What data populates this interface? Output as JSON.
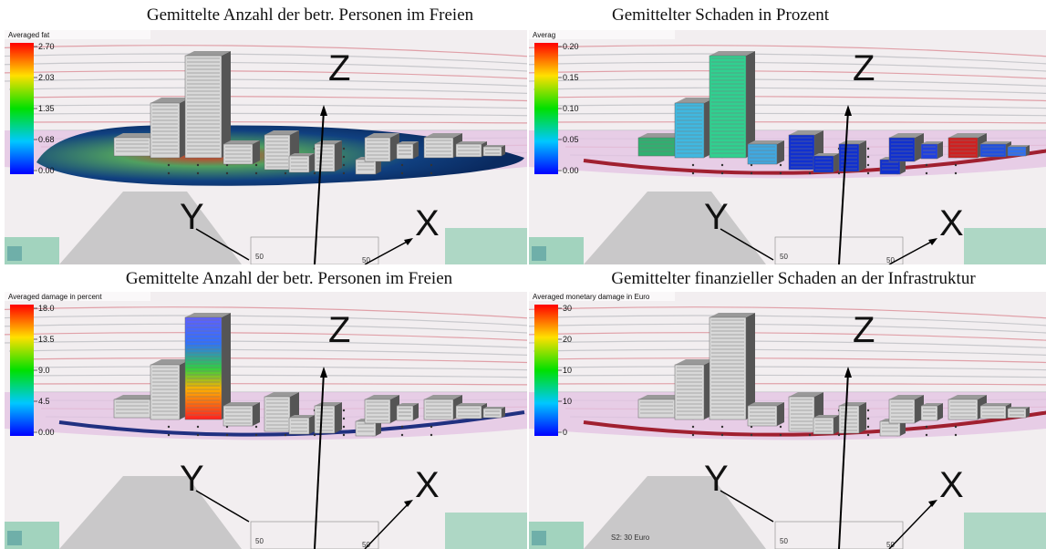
{
  "panels": [
    {
      "title": "Gemittelte Anzahl der betr. Personen im Freien",
      "legend_title": "Averaged fat",
      "legend_ticks": [
        "2.70",
        "2.03",
        "1.35",
        "0.68",
        "0.00"
      ],
      "axis_labels": {
        "z": "Z",
        "y": "Y",
        "x": "X"
      },
      "grid_labels": [
        "50",
        "50"
      ]
    },
    {
      "title": "Gemittelter Schaden in Prozent",
      "legend_title": "Averag",
      "legend_ticks": [
        "0.20",
        "0.15",
        "0.10",
        "0.05",
        "0.00"
      ],
      "axis_labels": {
        "z": "Z",
        "y": "Y",
        "x": "X"
      },
      "grid_labels": [
        "50",
        "50"
      ]
    },
    {
      "title": "Gemittelte Anzahl der betr. Personen im Freien",
      "legend_title": "Averaged damage in percent",
      "legend_ticks": [
        "18.0",
        "13.5",
        "9.0",
        "4.5",
        "0.00"
      ],
      "axis_labels": {
        "z": "Z",
        "y": "Y",
        "x": "X"
      },
      "grid_labels": [
        "50",
        "50"
      ]
    },
    {
      "title": "Gemittelter finanzieller Schaden an der Infrastruktur",
      "legend_title": "Averaged monetary damage in Euro",
      "legend_ticks": [
        "30",
        "20",
        "10",
        "10",
        "0"
      ],
      "axis_labels": {
        "z": "Z",
        "y": "Y",
        "x": "X"
      },
      "grid_labels": [
        "50",
        "50"
      ],
      "note": "S2: 30 Euro"
    }
  ]
}
